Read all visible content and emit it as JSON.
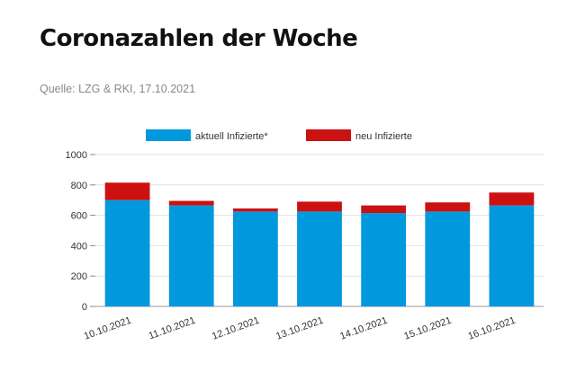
{
  "header": {
    "title": "Coronazahlen der Woche",
    "source": "Quelle: LZG & RKI, 17.10.2021"
  },
  "chart_data": {
    "type": "bar",
    "stacked": true,
    "categories": [
      "10.10.2021",
      "11.10.2021",
      "12.10.2021",
      "13.10.2021",
      "14.10.2021",
      "15.10.2021",
      "16.10.2021"
    ],
    "series": [
      {
        "name": "aktuell Infizierte*",
        "color": "#0099dd",
        "values": [
          700,
          665,
          625,
          625,
          615,
          625,
          665
        ]
      },
      {
        "name": "neu Infizierte",
        "color": "#cc1111",
        "values": [
          115,
          30,
          20,
          65,
          50,
          60,
          85
        ]
      }
    ],
    "ylim": [
      0,
      1000
    ],
    "yticks": [
      0,
      200,
      400,
      600,
      800,
      1000
    ],
    "grid": true,
    "legend_position": "top"
  }
}
